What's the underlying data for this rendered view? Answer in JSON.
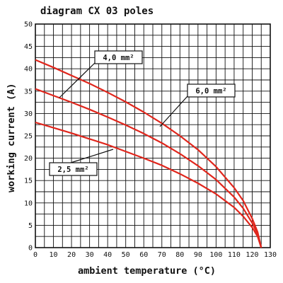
{
  "chart_data": {
    "type": "line",
    "title": "diagram CX 03 poles",
    "xlabel": "ambient temperature (°C)",
    "ylabel": "working current (A)",
    "xlim": [
      0,
      130
    ],
    "ylim": [
      0,
      50
    ],
    "x_ticks": [
      "0",
      "10",
      "20",
      "30",
      "40",
      "50",
      "60",
      "70",
      "80",
      "90",
      "100",
      "110",
      "120",
      "130"
    ],
    "y_ticks": [
      "0",
      "5",
      "10",
      "15",
      "20",
      "25",
      "30",
      "35",
      "40",
      "45",
      "50"
    ],
    "grid": true,
    "line_color": "#e0261c",
    "series": [
      {
        "name": "4,0 mm²",
        "x": [
          0,
          10,
          20,
          30,
          40,
          50,
          60,
          70,
          80,
          90,
          100,
          110,
          115,
          120,
          123,
          125
        ],
        "y": [
          42,
          40.3,
          38.5,
          36.7,
          34.7,
          32.6,
          30.3,
          27.8,
          25,
          21.9,
          18.1,
          13.4,
          10.5,
          6.5,
          3.5,
          0
        ]
      },
      {
        "name": "6,0 mm²",
        "x": [
          0,
          10,
          20,
          30,
          40,
          50,
          60,
          70,
          80,
          90,
          100,
          110,
          115,
          120,
          123,
          125
        ],
        "y": [
          35.5,
          34,
          32.5,
          30.9,
          29.2,
          27.4,
          25.5,
          23.4,
          21,
          18.3,
          15.2,
          11.3,
          8.8,
          5.5,
          3,
          0
        ]
      },
      {
        "name": "2,5 mm²",
        "x": [
          0,
          10,
          20,
          30,
          40,
          50,
          60,
          70,
          80,
          90,
          100,
          110,
          115,
          120,
          123,
          125
        ],
        "y": [
          28,
          26.8,
          25.6,
          24.3,
          23,
          21.5,
          20,
          18.4,
          16.5,
          14.4,
          12,
          9,
          7,
          4.5,
          2.5,
          0
        ]
      }
    ]
  }
}
